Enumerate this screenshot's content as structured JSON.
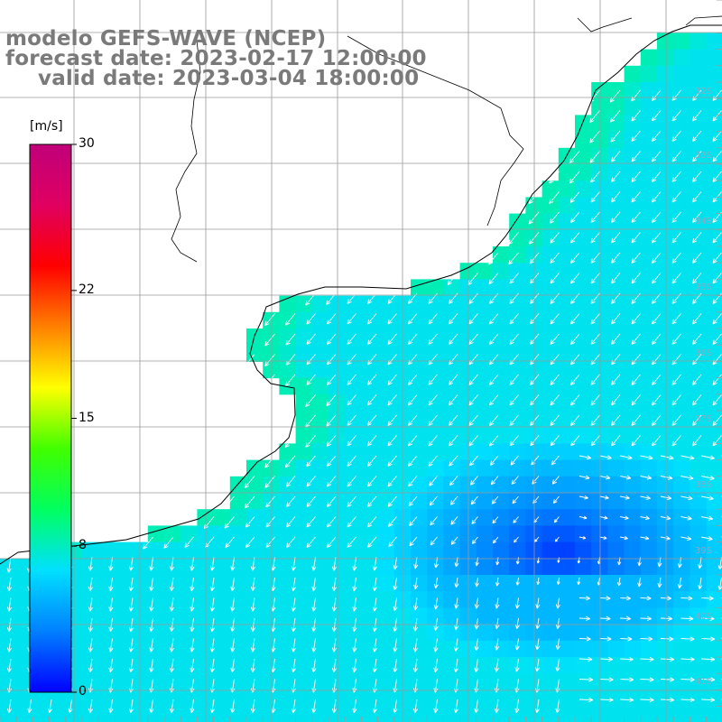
{
  "titles": {
    "line1": "modelo GEFS-WAVE (NCEP)",
    "line2": "forecast date: 2023-02-17 12:00:00",
    "line3": "valid date: 2023-03-04 18:00:00"
  },
  "colorbar": {
    "unit": "[m/s]",
    "min": 0,
    "max": 30,
    "ticks": [
      {
        "value": 30,
        "label": "30"
      },
      {
        "value": 22,
        "label": "22"
      },
      {
        "value": 15,
        "label": "15"
      },
      {
        "value": 8,
        "label": "8"
      },
      {
        "value": 0,
        "label": "0"
      }
    ],
    "colors": [
      "#0000ff",
      "#0080ff",
      "#00e0ff",
      "#00ff60",
      "#40ff00",
      "#ffff00",
      "#ff8000",
      "#ff0000",
      "#e00060",
      "#c0007a"
    ]
  },
  "map": {
    "variable": "wind speed",
    "units": "m/s",
    "latitude_labels": [
      "32S",
      "33S",
      "34S",
      "35S",
      "36S",
      "37S",
      "38S",
      "39S",
      "40S",
      "41S"
    ],
    "grid": "on",
    "colors": {
      "land": "#ffffff",
      "coast": "#000000",
      "gridline": "#9a9a9a",
      "arrow": "#ffffff"
    }
  }
}
